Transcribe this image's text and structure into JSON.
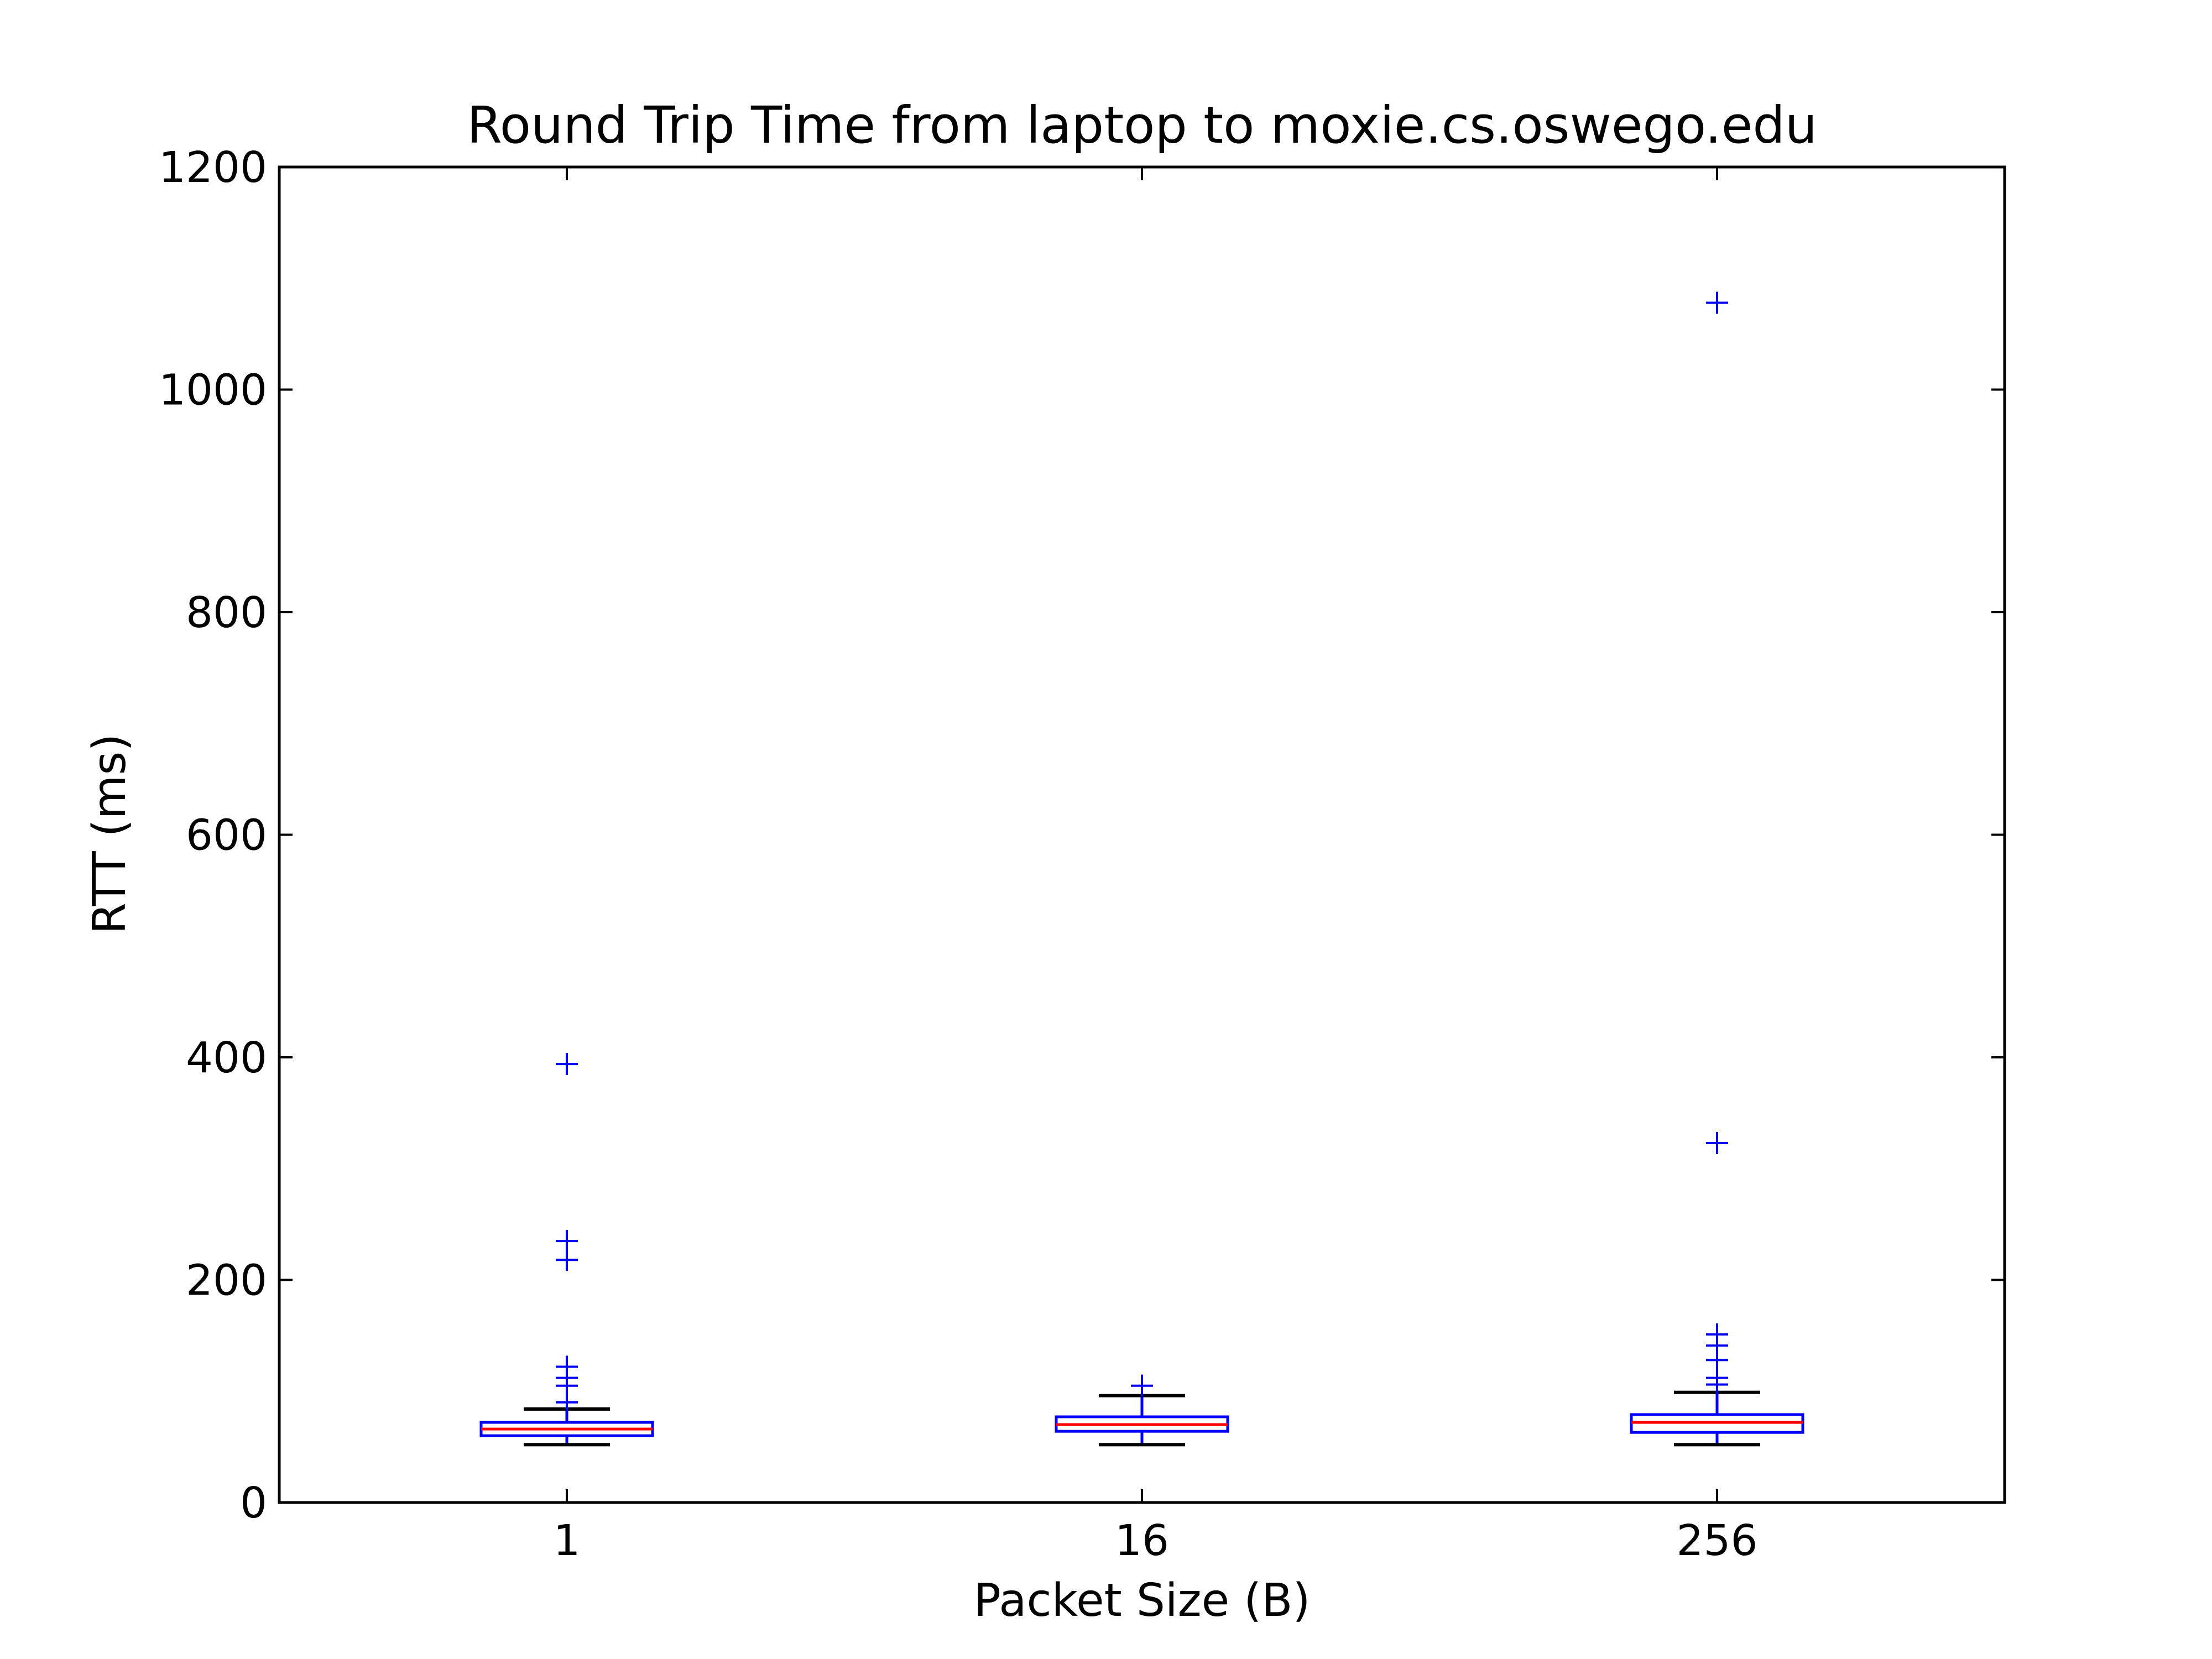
{
  "chart_data": {
    "type": "boxplot",
    "title": "Round Trip Time from laptop to moxie.cs.oswego.edu",
    "xlabel": "Packet Size (B)",
    "ylabel": "RTT (ms)",
    "categories": [
      "1",
      "16",
      "256"
    ],
    "ylim": [
      0,
      1200
    ],
    "yticks": [
      "0",
      "200",
      "400",
      "600",
      "800",
      "1000",
      "1200"
    ],
    "grid": false,
    "boxes": [
      {
        "category": "1",
        "whisker_low": 52,
        "q1": 60,
        "median": 66,
        "q3": 72,
        "whisker_high": 84,
        "outliers": [
          90,
          105,
          112,
          122,
          218,
          235,
          394
        ]
      },
      {
        "category": "16",
        "whisker_low": 52,
        "q1": 64,
        "median": 70,
        "q3": 77,
        "whisker_high": 96,
        "outliers": [
          105
        ]
      },
      {
        "category": "256",
        "whisker_low": 52,
        "q1": 63,
        "median": 72,
        "q3": 79,
        "whisker_high": 99,
        "outliers": [
          106,
          112,
          128,
          141,
          151,
          323,
          1078
        ]
      }
    ],
    "colors": {
      "box": "#0000ff",
      "median": "#ff0000",
      "whisker": "#000000",
      "flier": "#0000ff"
    }
  }
}
